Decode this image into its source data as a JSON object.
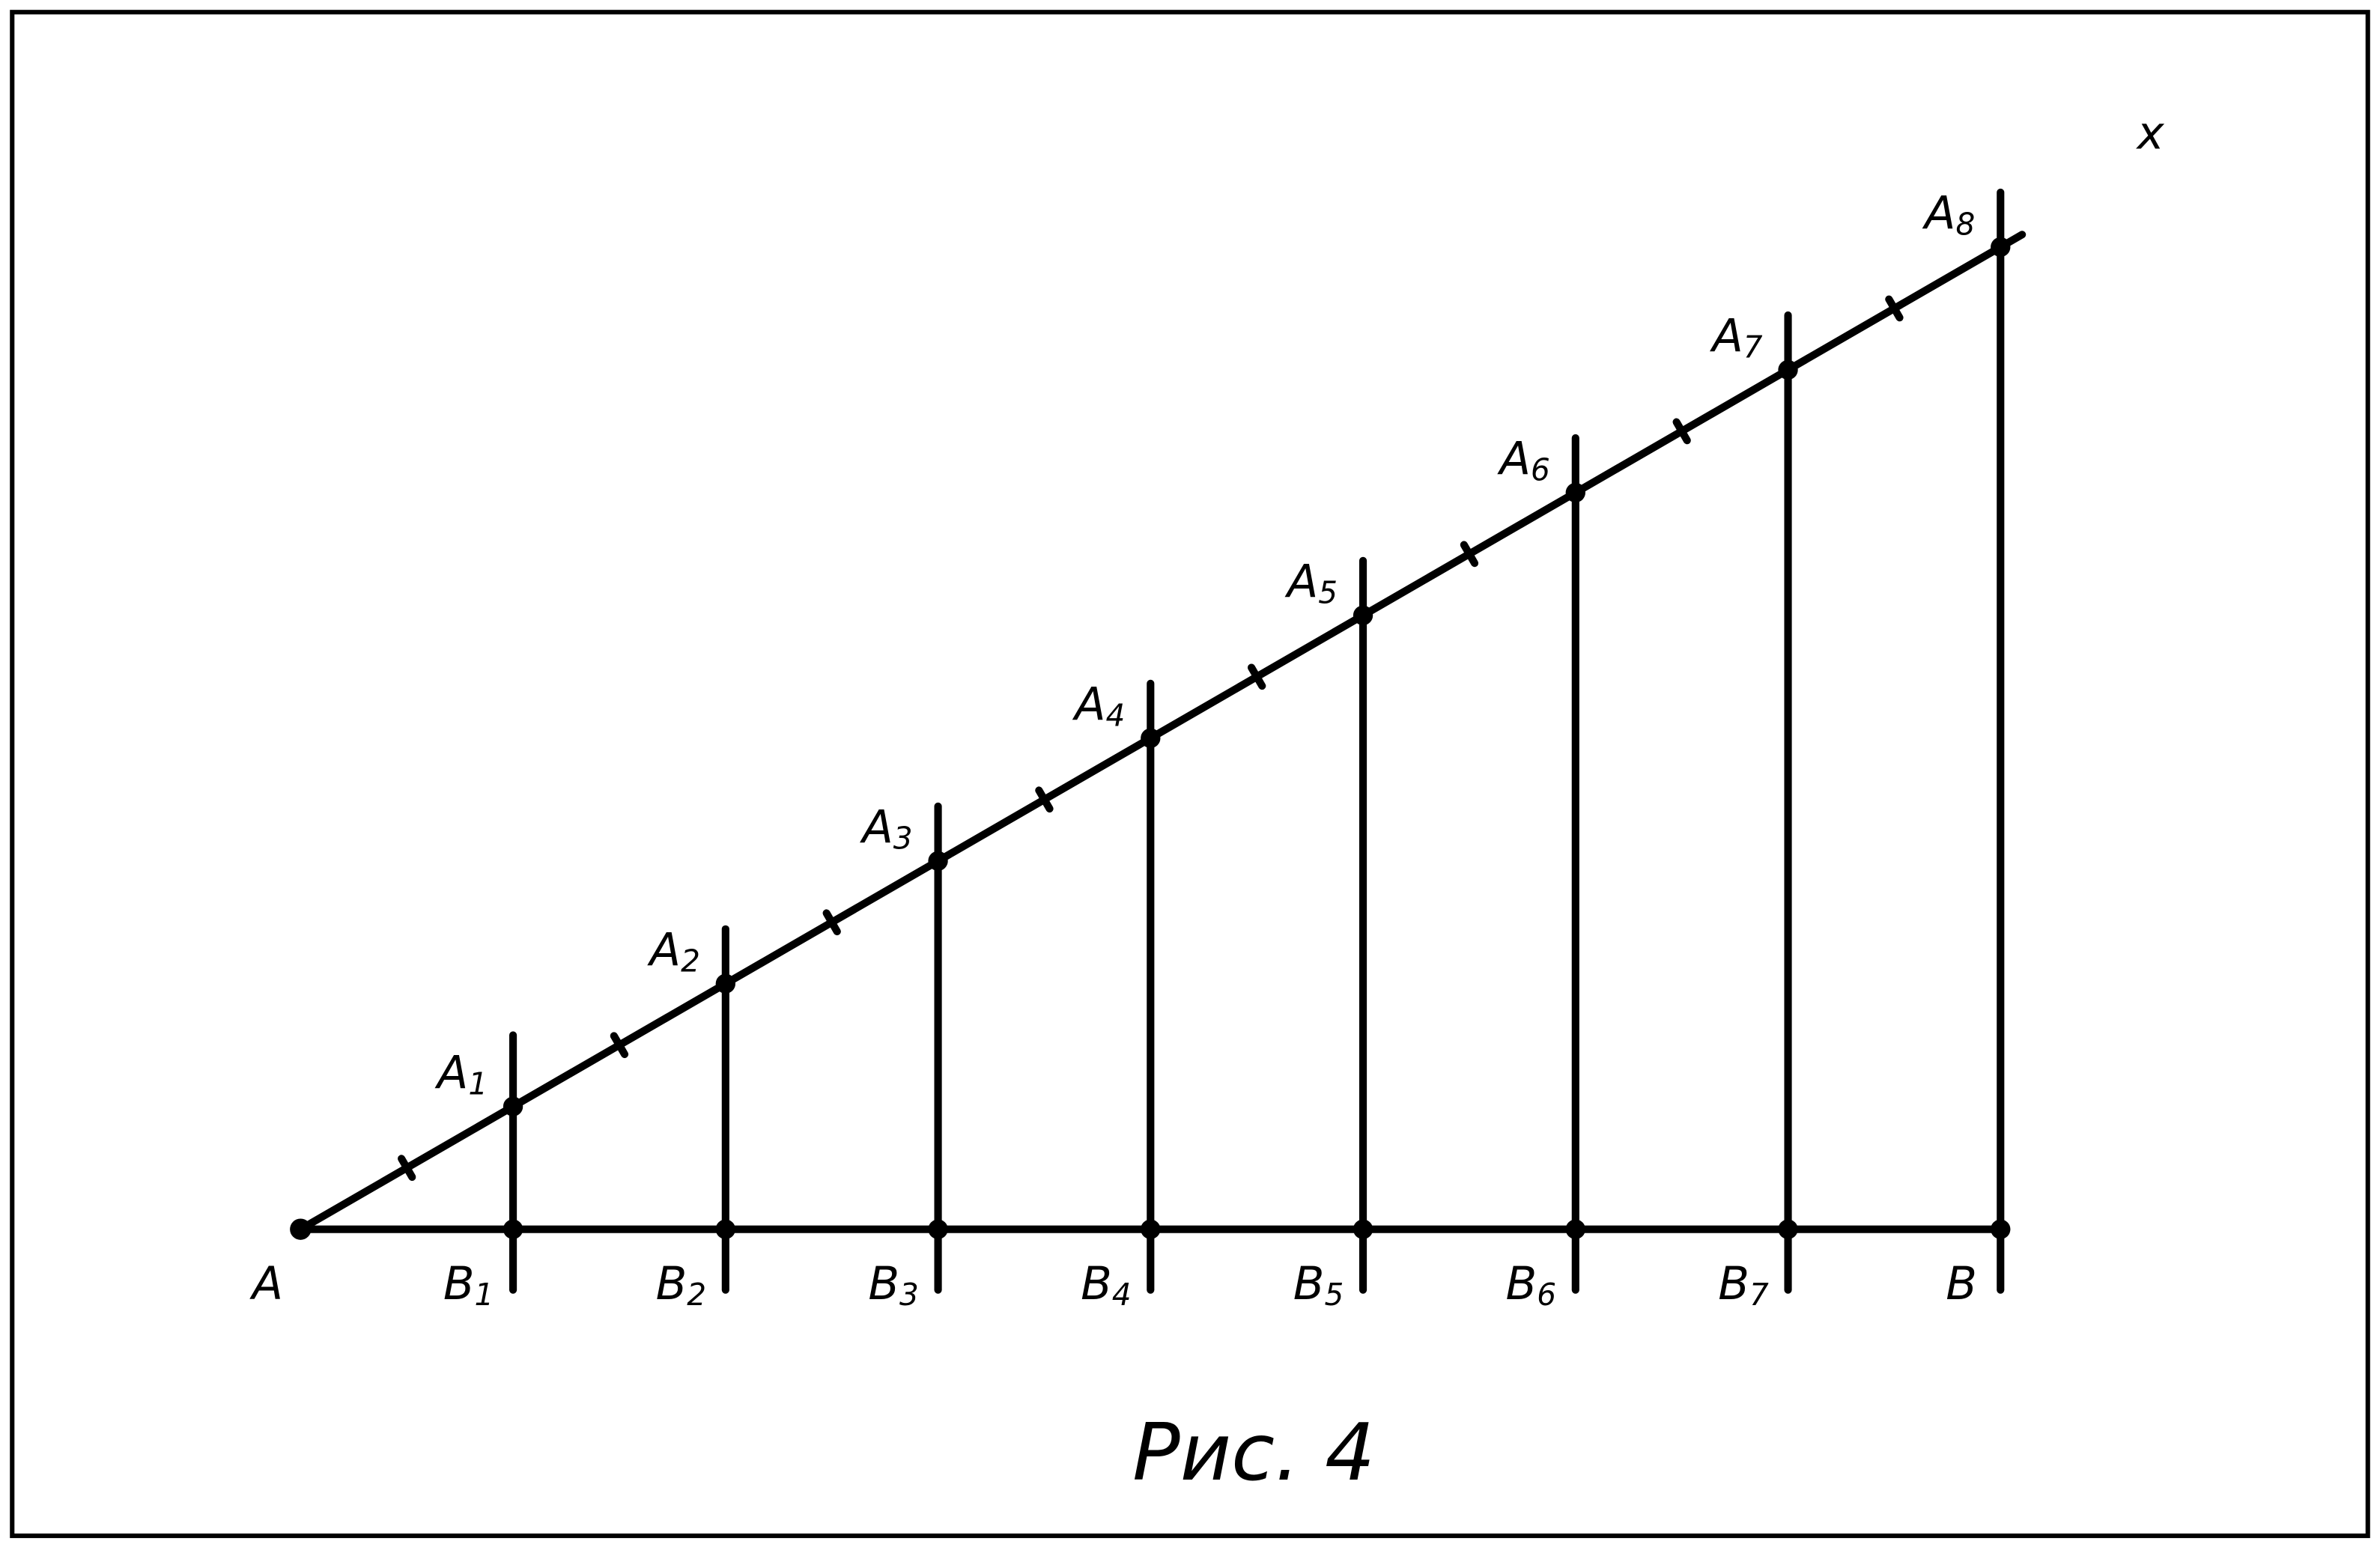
{
  "origin": "A",
  "end": "B",
  "ray_label": "x",
  "ray_points": [
    {
      "letter": "A",
      "index": "1"
    },
    {
      "letter": "A",
      "index": "2"
    },
    {
      "letter": "A",
      "index": "3"
    },
    {
      "letter": "A",
      "index": "4"
    },
    {
      "letter": "A",
      "index": "5"
    },
    {
      "letter": "A",
      "index": "6"
    },
    {
      "letter": "A",
      "index": "7"
    },
    {
      "letter": "A",
      "index": "8"
    }
  ],
  "segment_points": [
    {
      "letter": "B",
      "index": "1"
    },
    {
      "letter": "B",
      "index": "2"
    },
    {
      "letter": "B",
      "index": "3"
    },
    {
      "letter": "B",
      "index": "4"
    },
    {
      "letter": "B",
      "index": "5"
    },
    {
      "letter": "B",
      "index": "6"
    },
    {
      "letter": "B",
      "index": "7"
    }
  ],
  "caption": "Рис. 4"
}
